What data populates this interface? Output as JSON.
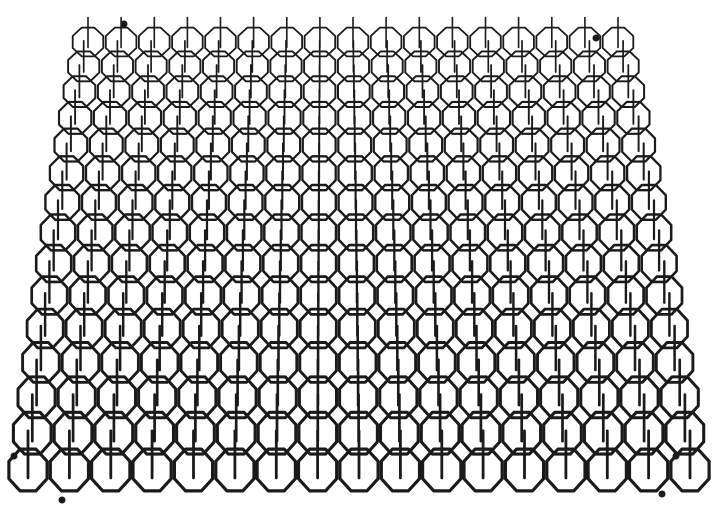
{
  "figure": {
    "title": "",
    "description_text": ""
  },
  "lattice": {
    "rows": 15,
    "cols": 17,
    "cell_shape": "octagon",
    "has_vertical_pins": true,
    "corner_markers": 4
  },
  "colors": {
    "background": "#ffffff",
    "stroke": "#1a1a1a"
  }
}
